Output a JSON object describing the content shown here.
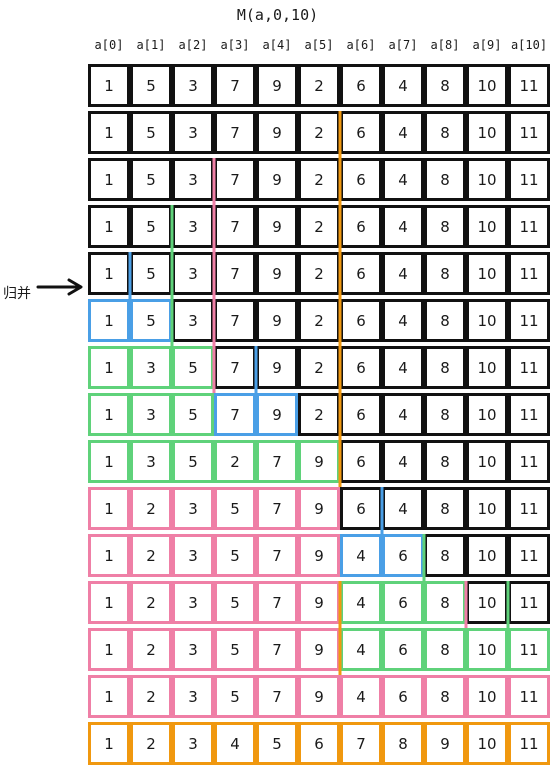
{
  "title": "M(a,0,10)",
  "headers": [
    "a[0]",
    "a[1]",
    "a[2]",
    "a[3]",
    "a[4]",
    "a[5]",
    "a[6]",
    "a[7]",
    "a[8]",
    "a[9]",
    "a[10]"
  ],
  "side_label": "归并",
  "colors": {
    "default": "#111111",
    "blue": "#4a9fe6",
    "green": "#5fd27a",
    "pink": "#ef7fa6",
    "orange": "#f0980f"
  },
  "rows": [
    {
      "values": [
        1,
        5,
        3,
        7,
        9,
        2,
        6,
        4,
        8,
        10,
        11
      ],
      "colors": [
        "k",
        "k",
        "k",
        "k",
        "k",
        "k",
        "k",
        "k",
        "k",
        "k",
        "k"
      ]
    },
    {
      "values": [
        1,
        5,
        3,
        7,
        9,
        2,
        6,
        4,
        8,
        10,
        11
      ],
      "colors": [
        "k",
        "k",
        "k",
        "k",
        "k",
        "k",
        "k",
        "k",
        "k",
        "k",
        "k"
      ]
    },
    {
      "values": [
        1,
        5,
        3,
        7,
        9,
        2,
        6,
        4,
        8,
        10,
        11
      ],
      "colors": [
        "k",
        "k",
        "k",
        "k",
        "k",
        "k",
        "k",
        "k",
        "k",
        "k",
        "k"
      ]
    },
    {
      "values": [
        1,
        5,
        3,
        7,
        9,
        2,
        6,
        4,
        8,
        10,
        11
      ],
      "colors": [
        "k",
        "k",
        "k",
        "k",
        "k",
        "k",
        "k",
        "k",
        "k",
        "k",
        "k"
      ]
    },
    {
      "values": [
        1,
        5,
        3,
        7,
        9,
        2,
        6,
        4,
        8,
        10,
        11
      ],
      "colors": [
        "k",
        "k",
        "k",
        "k",
        "k",
        "k",
        "k",
        "k",
        "k",
        "k",
        "k"
      ]
    },
    {
      "values": [
        1,
        5,
        3,
        7,
        9,
        2,
        6,
        4,
        8,
        10,
        11
      ],
      "colors": [
        "b",
        "b",
        "k",
        "k",
        "k",
        "k",
        "k",
        "k",
        "k",
        "k",
        "k"
      ]
    },
    {
      "values": [
        1,
        3,
        5,
        7,
        9,
        2,
        6,
        4,
        8,
        10,
        11
      ],
      "colors": [
        "g",
        "g",
        "g",
        "k",
        "k",
        "k",
        "k",
        "k",
        "k",
        "k",
        "k"
      ]
    },
    {
      "values": [
        1,
        3,
        5,
        7,
        9,
        2,
        6,
        4,
        8,
        10,
        11
      ],
      "colors": [
        "g",
        "g",
        "g",
        "b",
        "b",
        "k",
        "k",
        "k",
        "k",
        "k",
        "k"
      ]
    },
    {
      "values": [
        1,
        3,
        5,
        2,
        7,
        9,
        6,
        4,
        8,
        10,
        11
      ],
      "colors": [
        "g",
        "g",
        "g",
        "g",
        "g",
        "g",
        "k",
        "k",
        "k",
        "k",
        "k"
      ]
    },
    {
      "values": [
        1,
        2,
        3,
        5,
        7,
        9,
        6,
        4,
        8,
        10,
        11
      ],
      "colors": [
        "p",
        "p",
        "p",
        "p",
        "p",
        "p",
        "k",
        "k",
        "k",
        "k",
        "k"
      ]
    },
    {
      "values": [
        1,
        2,
        3,
        5,
        7,
        9,
        4,
        6,
        8,
        10,
        11
      ],
      "colors": [
        "p",
        "p",
        "p",
        "p",
        "p",
        "p",
        "b",
        "b",
        "k",
        "k",
        "k"
      ]
    },
    {
      "values": [
        1,
        2,
        3,
        5,
        7,
        9,
        4,
        6,
        8,
        10,
        11
      ],
      "colors": [
        "p",
        "p",
        "p",
        "p",
        "p",
        "p",
        "g",
        "g",
        "g",
        "k",
        "k"
      ]
    },
    {
      "values": [
        1,
        2,
        3,
        5,
        7,
        9,
        4,
        6,
        8,
        10,
        11
      ],
      "colors": [
        "p",
        "p",
        "p",
        "p",
        "p",
        "p",
        "g",
        "g",
        "g",
        "g",
        "g"
      ]
    },
    {
      "values": [
        1,
        2,
        3,
        5,
        7,
        9,
        4,
        6,
        8,
        10,
        11
      ],
      "colors": [
        "p",
        "p",
        "p",
        "p",
        "p",
        "p",
        "p",
        "p",
        "p",
        "p",
        "p"
      ]
    },
    {
      "values": [
        1,
        2,
        3,
        4,
        5,
        6,
        7,
        8,
        9,
        10,
        11
      ],
      "colors": [
        "o",
        "o",
        "o",
        "o",
        "o",
        "o",
        "o",
        "o",
        "o",
        "o",
        "o"
      ]
    }
  ]
}
